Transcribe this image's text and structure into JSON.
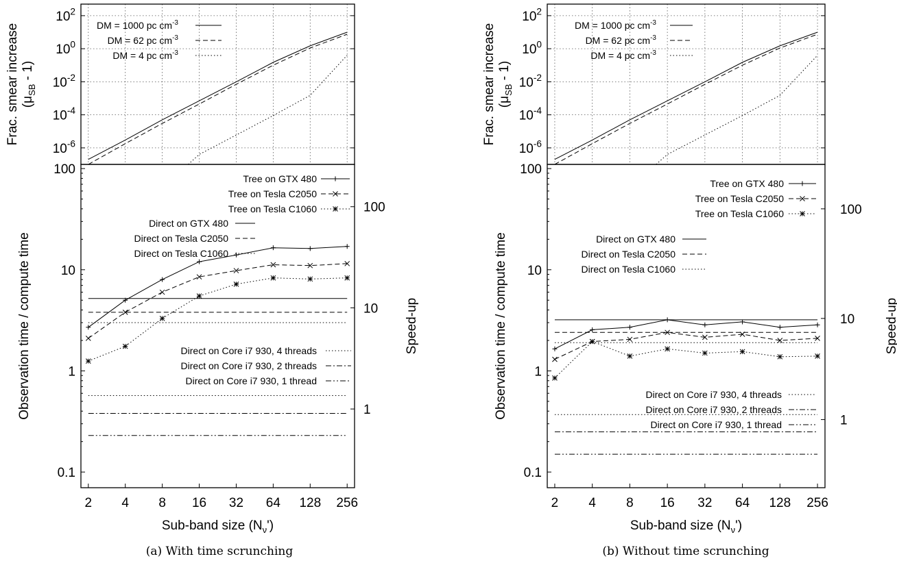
{
  "chart_data": [
    {
      "panel": "a",
      "caption": "(a) With time scrunching",
      "smear": {
        "type": "line",
        "ylabel": "Frac. smear increase",
        "ylabel2": "(μSB - 1)",
        "yscale": "log",
        "ylim": [
          1e-07,
          500
        ],
        "yticks": [
          "10^2",
          "10^0",
          "10^-2",
          "10^-4",
          "10^-6"
        ],
        "x": [
          2,
          4,
          8,
          16,
          32,
          64,
          128,
          256
        ],
        "series": [
          {
            "name": "DM = 1000 pc cm^-3",
            "dash": "solid",
            "values": [
              2e-07,
              3e-06,
              5e-05,
              0.0007,
              0.01,
              0.15,
              1.5,
              10
            ]
          },
          {
            "name": "DM = 62 pc cm^-3",
            "dash": "dashed",
            "values": [
              1e-07,
              1.8e-06,
              3e-05,
              0.00045,
              0.007,
              0.1,
              1.1,
              7.5
            ]
          },
          {
            "name": "DM = 4 pc cm^-3",
            "dash": "dotted",
            "x": [
              13,
              16,
              32,
              64,
              128,
              256
            ],
            "values": [
              1e-07,
              4e-07,
              6e-06,
              9e-05,
              0.0015,
              0.4
            ]
          }
        ]
      },
      "perf": {
        "type": "line",
        "xlabel": "Sub-band size (Nν')",
        "ylabel": "Observation time / compute time",
        "y2label": "Speed-up",
        "yscale": "log",
        "ylim": [
          0.07,
          110
        ],
        "yticks": [
          "100",
          "10",
          "1",
          "0.1"
        ],
        "y2ticks": [
          "100",
          "10",
          "1"
        ],
        "xtick_labels": [
          "2",
          "4",
          "8",
          "16",
          "32",
          "64",
          "128",
          "256"
        ],
        "x": [
          2,
          4,
          8,
          16,
          32,
          64,
          128,
          256
        ],
        "tree_series": [
          {
            "name": "Tree on GTX 480",
            "marker": "+",
            "dash": "solid",
            "values": [
              2.7,
              5.0,
              8.0,
              12.0,
              14.0,
              16.5,
              16.2,
              17.0
            ]
          },
          {
            "name": "Tree on Tesla C2050",
            "marker": "x",
            "dash": "dashed",
            "values": [
              2.1,
              3.8,
              6.0,
              8.5,
              9.8,
              11.2,
              11.0,
              11.5
            ]
          },
          {
            "name": "Tree on Tesla C1060",
            "marker": "*",
            "dash": "dotted",
            "values": [
              1.25,
              1.75,
              3.3,
              5.5,
              7.2,
              8.3,
              8.1,
              8.3
            ]
          }
        ],
        "direct_series": [
          {
            "name": "Direct on GTX 480",
            "dash": "solid",
            "value": 5.2
          },
          {
            "name": "Direct on Tesla C2050",
            "dash": "dashed",
            "value": 3.8
          },
          {
            "name": "Direct on Tesla C1060",
            "dash": "dotted",
            "value": 3.0
          },
          {
            "name": "Direct on Core i7 930, 4 threads",
            "dash": "dotted",
            "value": 0.57
          },
          {
            "name": "Direct on Core i7 930, 2 threads",
            "dash": "dashdot",
            "value": 0.38
          },
          {
            "name": "Direct on Core i7 930, 1 thread",
            "dash": "dashdotdot",
            "value": 0.23
          }
        ]
      }
    },
    {
      "panel": "b",
      "caption": "(b) Without time scrunching",
      "smear": {
        "type": "line",
        "ylabel": "Frac. smear increase",
        "ylabel2": "(μSB - 1)",
        "yscale": "log",
        "ylim": [
          1e-07,
          500
        ],
        "yticks": [
          "10^2",
          "10^0",
          "10^-2",
          "10^-4",
          "10^-6"
        ],
        "x": [
          2,
          4,
          8,
          16,
          32,
          64,
          128,
          256
        ],
        "series": [
          {
            "name": "DM = 1000 pc cm^-3",
            "dash": "solid",
            "values": [
              2e-07,
              3e-06,
              5e-05,
              0.0007,
              0.01,
              0.15,
              1.5,
              10
            ]
          },
          {
            "name": "DM = 62 pc cm^-3",
            "dash": "dashed",
            "values": [
              1e-07,
              1.8e-06,
              3e-05,
              0.00045,
              0.007,
              0.1,
              1.1,
              7.5
            ]
          },
          {
            "name": "DM = 4 pc cm^-3",
            "dash": "dotted",
            "x": [
              13,
              16,
              32,
              64,
              128,
              256
            ],
            "values": [
              1e-07,
              4e-07,
              6e-06,
              9e-05,
              0.0015,
              0.4
            ]
          }
        ]
      },
      "perf": {
        "type": "line",
        "xlabel": "Sub-band size (Nν')",
        "ylabel": "Observation time / compute time",
        "y2label": "Speed-up",
        "yscale": "log",
        "ylim": [
          0.07,
          110
        ],
        "yticks": [
          "100",
          "10",
          "1",
          "0.1"
        ],
        "y2ticks": [
          "100",
          "10",
          "1"
        ],
        "xtick_labels": [
          "2",
          "4",
          "8",
          "16",
          "32",
          "64",
          "128",
          "256"
        ],
        "x": [
          2,
          4,
          8,
          16,
          32,
          64,
          128,
          256
        ],
        "tree_series": [
          {
            "name": "Tree on GTX 480",
            "marker": "+",
            "dash": "solid",
            "values": [
              1.65,
              2.55,
              2.7,
              3.2,
              2.85,
              3.05,
              2.7,
              2.85
            ]
          },
          {
            "name": "Tree on Tesla C2050",
            "marker": "x",
            "dash": "dashed",
            "values": [
              1.3,
              1.95,
              2.05,
              2.4,
              2.15,
              2.3,
              2.0,
              2.1
            ]
          },
          {
            "name": "Tree on Tesla C1060",
            "marker": "*",
            "dash": "dotted",
            "values": [
              0.85,
              1.95,
              1.4,
              1.65,
              1.5,
              1.55,
              1.38,
              1.4
            ]
          }
        ],
        "direct_series": [
          {
            "name": "Direct on GTX 480",
            "dash": "solid",
            "value": 3.2
          },
          {
            "name": "Direct on Tesla C2050",
            "dash": "dashed",
            "value": 2.4
          },
          {
            "name": "Direct on Tesla C1060",
            "dash": "dotted",
            "value": 1.9
          },
          {
            "name": "Direct on Core i7 930, 4 threads",
            "dash": "dotted",
            "value": 0.37
          },
          {
            "name": "Direct on Core i7 930, 2 threads",
            "dash": "dashdot",
            "value": 0.25
          },
          {
            "name": "Direct on Core i7 930, 1 thread",
            "dash": "dashdotdot",
            "value": 0.15
          }
        ]
      }
    }
  ]
}
